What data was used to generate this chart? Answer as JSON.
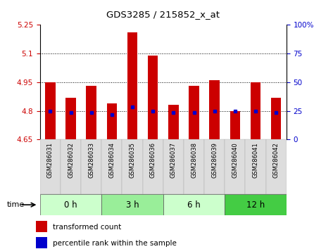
{
  "title": "GDS3285 / 215852_x_at",
  "samples": [
    "GSM286031",
    "GSM286032",
    "GSM286033",
    "GSM286034",
    "GSM286035",
    "GSM286036",
    "GSM286037",
    "GSM286038",
    "GSM286039",
    "GSM286040",
    "GSM286041",
    "GSM286042"
  ],
  "bar_values": [
    4.95,
    4.87,
    4.93,
    4.84,
    5.21,
    5.09,
    4.83,
    4.93,
    4.96,
    4.8,
    4.95,
    4.87
  ],
  "bar_base": 4.65,
  "blue_dot_values": [
    4.8,
    4.79,
    4.79,
    4.78,
    4.82,
    4.8,
    4.79,
    4.79,
    4.8,
    4.8,
    4.8,
    4.79
  ],
  "ylim": [
    4.65,
    5.25
  ],
  "yticks": [
    4.65,
    4.8,
    4.95,
    5.1,
    5.25
  ],
  "ytick_labels": [
    "4.65",
    "4.8",
    "4.95",
    "5.1",
    "5.25"
  ],
  "right_yticks": [
    0,
    25,
    50,
    75,
    100
  ],
  "right_ytick_labels": [
    "0",
    "25",
    "50",
    "75",
    "100%"
  ],
  "gridlines": [
    4.8,
    4.95,
    5.1
  ],
  "bar_color": "#cc0000",
  "blue_dot_color": "#0000cc",
  "bar_width": 0.5,
  "group_boundaries": [
    [
      0,
      3,
      "0 h",
      "#ccffcc"
    ],
    [
      3,
      6,
      "3 h",
      "#99ee99"
    ],
    [
      6,
      9,
      "6 h",
      "#ccffcc"
    ],
    [
      9,
      12,
      "12 h",
      "#44cc44"
    ]
  ],
  "sample_band_color": "#dddddd",
  "time_label": "time",
  "legend_bar_label": "transformed count",
  "legend_dot_label": "percentile rank within the sample",
  "left_tick_color": "#cc0000",
  "right_tick_color": "#0000cc"
}
